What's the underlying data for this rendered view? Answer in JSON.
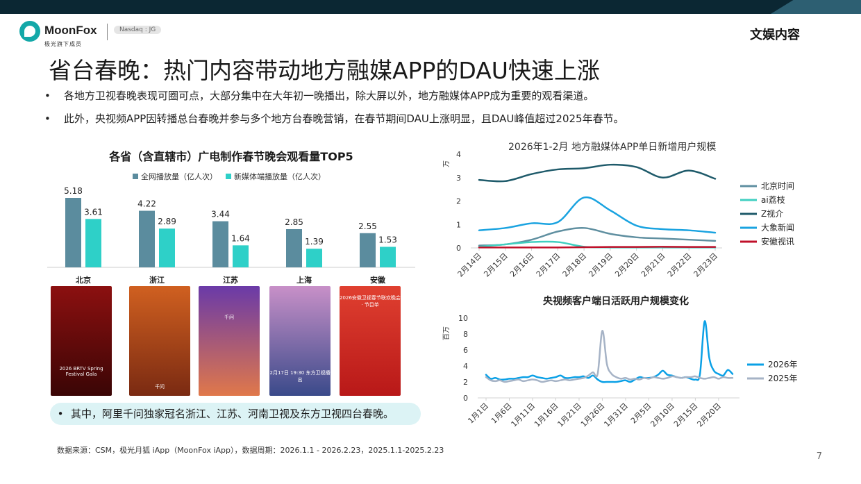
{
  "brand": {
    "name": "MoonFox",
    "tagline": "极光旗下成员",
    "badge": "Nasdaq : JG"
  },
  "section": "文娱内容",
  "title": "省台春晚：热门内容带动地方融媒APP的DAU快速上涨",
  "bullets": [
    "各地方卫视春晚表现可圈可点，大部分集中在大年初一晚播出，除大屏以外，地方融媒体APP成为重要的观看渠道。",
    "此外，央视频APP因转播总台春晚并参与多个地方台春晚营销，在春节期间DAU上涨明显，且DAU峰值超过2025年春节。"
  ],
  "bullet_marker": "•",
  "note": "其中，阿里千问独家冠名浙江、江苏、河南卫视及东方卫视四台春晚。",
  "source": "数据来源：CSM，极光月狐 iApp（MoonFox iApp），数据周期：2026.1.1 - 2026.2.23，2025.1.1-2025.2.23",
  "page_number": "7",
  "posters": [
    {
      "name": "beijing",
      "caption": "2026 BRTV Spring Festival Gala",
      "colors": [
        "#8c1010",
        "#3a0505"
      ]
    },
    {
      "name": "zhejiang",
      "caption": "千问",
      "colors": [
        "#d06020",
        "#7a2a12"
      ]
    },
    {
      "name": "jiangsu",
      "caption": "千问",
      "colors": [
        "#6a3aa8",
        "#e0784a"
      ]
    },
    {
      "name": "shanghai",
      "caption": "2月17日 19:30 东方卫视播出",
      "colors": [
        "#c890c8",
        "#3a4a8a"
      ]
    },
    {
      "name": "anhui",
      "caption": "2026安徽卫视春节联欢晚会 · 节目单",
      "colors": [
        "#e04030",
        "#b81818"
      ]
    }
  ],
  "chart_data": [
    {
      "type": "bar",
      "title": "各省（含直辖市）广电制作春节晚会观看量TOP5",
      "categories": [
        "北京",
        "浙江",
        "江苏",
        "上海",
        "安徽"
      ],
      "series": [
        {
          "name": "全网播放量（亿人次）",
          "color": "#5b8c9e",
          "values": [
            5.18,
            4.22,
            3.44,
            2.85,
            2.55
          ]
        },
        {
          "name": "新媒体端播放量（亿人次）",
          "color": "#2ed0c8",
          "values": [
            3.61,
            2.89,
            1.64,
            1.39,
            1.53
          ]
        }
      ],
      "ylim": [
        0,
        6
      ],
      "legend_position": "top"
    },
    {
      "type": "line",
      "title": "2026年1-2月  地方融媒体APP单日新增用户规模",
      "ylabel": "万",
      "x": [
        "2月14日",
        "2月15日",
        "2月16日",
        "2月17日",
        "2月18日",
        "2月19日",
        "2月20日",
        "2月21日",
        "2月22日",
        "2月23日"
      ],
      "ylim": [
        0,
        4
      ],
      "yticks": [
        0,
        1,
        2,
        3,
        4
      ],
      "series": [
        {
          "name": "北京时间",
          "color": "#5f8fa0",
          "values": [
            0.1,
            0.15,
            0.35,
            0.7,
            0.85,
            0.6,
            0.45,
            0.4,
            0.35,
            0.3
          ]
        },
        {
          "name": "ai荔枝",
          "color": "#3fcfc0",
          "values": [
            0.05,
            0.15,
            0.25,
            0.25,
            0.05,
            0.02,
            0.02,
            0.02,
            0.02,
            0.02
          ]
        },
        {
          "name": "Z视介",
          "color": "#1e5a6a",
          "values": [
            2.9,
            2.85,
            3.15,
            3.35,
            3.4,
            3.55,
            3.45,
            3.0,
            3.3,
            2.95
          ]
        },
        {
          "name": "大象新闻",
          "color": "#1aa3e0",
          "values": [
            0.75,
            0.85,
            1.05,
            1.1,
            2.15,
            1.6,
            0.95,
            0.8,
            0.75,
            0.65
          ]
        },
        {
          "name": "安徽视讯",
          "color": "#c0102a",
          "values": [
            0.02,
            0.02,
            0.02,
            0.02,
            0.03,
            0.04,
            0.04,
            0.05,
            0.04,
            0.04
          ]
        }
      ],
      "legend_position": "right"
    },
    {
      "type": "line",
      "title": "央视频客户端日活跃用户规模变化",
      "ylabel": "百万",
      "x": [
        "1月1日",
        "1月2日",
        "1月3日",
        "1月4日",
        "1月5日",
        "1月6日",
        "1月7日",
        "1月8日",
        "1月9日",
        "1月10日",
        "1月11日",
        "1月12日",
        "1月13日",
        "1月14日",
        "1月15日",
        "1月16日",
        "1月17日",
        "1月18日",
        "1月19日",
        "1月20日",
        "1月21日",
        "1月22日",
        "1月23日",
        "1月24日",
        "1月25日",
        "1月26日",
        "1月27日",
        "1月28日",
        "1月29日",
        "1月30日",
        "1月31日",
        "2月1日",
        "2月2日",
        "2月3日",
        "2月4日",
        "2月5日",
        "2月6日",
        "2月7日",
        "2月8日",
        "2月9日",
        "2月10日",
        "2月11日",
        "2月12日",
        "2月13日",
        "2月14日",
        "2月15日",
        "2月16日",
        "2月17日",
        "2月18日",
        "2月19日",
        "2月20日",
        "2月21日",
        "2月22日",
        "2月23日"
      ],
      "xticks": [
        "1月1日",
        "1月6日",
        "1月11日",
        "1月16日",
        "1月21日",
        "1月26日",
        "1月31日",
        "2月5日",
        "2月10日",
        "2月15日",
        "2月20日"
      ],
      "ylim": [
        0,
        10
      ],
      "yticks": [
        0,
        2,
        4,
        6,
        8,
        10
      ],
      "series": [
        {
          "name": "2026年",
          "color": "#0aa0e6",
          "values": [
            2.9,
            2.4,
            2.5,
            2.3,
            2.3,
            2.4,
            2.4,
            2.5,
            2.6,
            2.6,
            2.8,
            2.6,
            2.5,
            2.4,
            2.5,
            2.6,
            2.8,
            2.5,
            2.5,
            2.6,
            2.6,
            2.7,
            2.5,
            2.8,
            2.3,
            2.0,
            2.0,
            2.0,
            2.0,
            2.1,
            2.2,
            2.0,
            2.3,
            2.6,
            2.5,
            2.5,
            2.6,
            2.9,
            3.4,
            2.9,
            2.8,
            2.6,
            2.5,
            2.6,
            2.4,
            2.3,
            3.0,
            9.6,
            5.0,
            3.4,
            3.0,
            2.8,
            3.5,
            3.0
          ]
        },
        {
          "name": "2025年",
          "color": "#a6b3c6",
          "values": [
            2.6,
            2.2,
            2.1,
            2.2,
            2.0,
            2.1,
            2.2,
            2.3,
            2.1,
            2.2,
            2.3,
            2.2,
            2.0,
            2.1,
            2.2,
            2.1,
            2.2,
            2.3,
            2.2,
            2.3,
            2.4,
            2.5,
            2.8,
            3.2,
            3.0,
            8.4,
            4.2,
            3.0,
            2.6,
            2.4,
            2.5,
            2.3,
            2.4,
            2.3,
            2.5,
            2.4,
            2.6,
            2.5,
            2.4,
            2.5,
            2.7,
            2.6,
            2.5,
            2.6,
            2.6,
            2.7,
            2.5,
            2.4,
            2.5,
            2.6,
            2.4,
            2.6,
            2.5,
            2.5
          ]
        }
      ],
      "legend_position": "right"
    }
  ]
}
